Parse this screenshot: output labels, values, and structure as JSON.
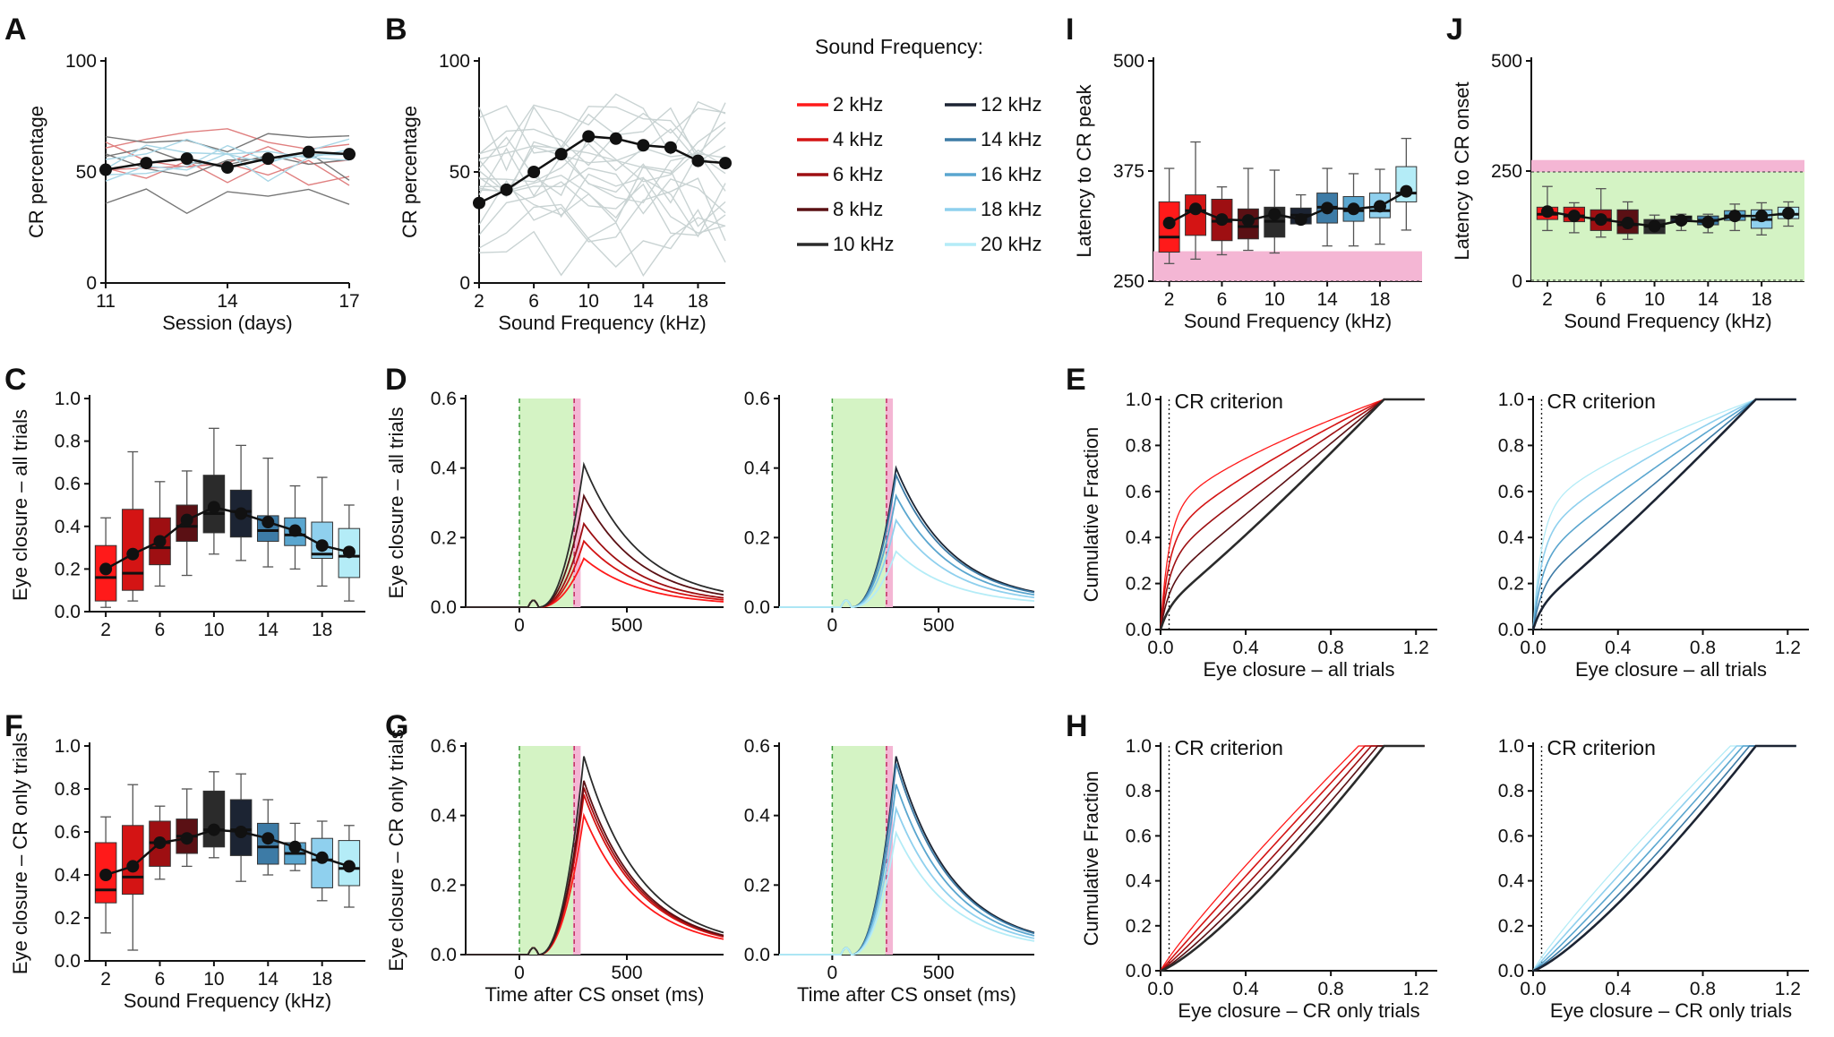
{
  "figure": {
    "legend": {
      "title": "Sound Frequency:",
      "items": [
        {
          "label": "2 kHz",
          "color": "#ff1a1a"
        },
        {
          "label": "4 kHz",
          "color": "#d41414"
        },
        {
          "label": "6 kHz",
          "color": "#9e0f12"
        },
        {
          "label": "8 kHz",
          "color": "#5a1014"
        },
        {
          "label": "10 kHz",
          "color": "#2b2b2b"
        },
        {
          "label": "12 kHz",
          "color": "#1c2433"
        },
        {
          "label": "14 kHz",
          "color": "#3d7ba6"
        },
        {
          "label": "16 kHz",
          "color": "#5aa6cf"
        },
        {
          "label": "18 kHz",
          "color": "#8fd0ee"
        },
        {
          "label": "20 kHz",
          "color": "#b4ecf7"
        }
      ]
    },
    "criterion_label": "CR criterion",
    "colors": {
      "green_window": "#d4f3c4",
      "pink_window": "#f4b6d4",
      "mean_line": "#111111",
      "gray_line": "#c9d3d3"
    }
  },
  "chart_data": [
    {
      "id": "A",
      "type": "line",
      "panel_label": "A",
      "xlabel": "Session (days)",
      "ylabel": "CR percentage",
      "x": [
        11,
        12,
        13,
        14,
        15,
        16,
        17
      ],
      "xticks": [
        11,
        14,
        17
      ],
      "ylim": [
        0,
        100
      ],
      "yticks": [
        0,
        50,
        100
      ],
      "series": [
        {
          "name": "mean",
          "values": [
            51,
            54,
            56,
            52,
            56,
            59,
            58
          ]
        }
      ]
    },
    {
      "id": "B",
      "type": "line",
      "panel_label": "B",
      "xlabel": "Sound Frequency (kHz)",
      "ylabel": "CR percentage",
      "x": [
        2,
        4,
        6,
        8,
        10,
        12,
        14,
        16,
        18,
        20
      ],
      "xticks": [
        2,
        6,
        10,
        14,
        18
      ],
      "ylim": [
        0,
        100
      ],
      "yticks": [
        0,
        50,
        100
      ],
      "series": [
        {
          "name": "mean",
          "values": [
            36,
            42,
            50,
            58,
            66,
            65,
            62,
            61,
            55,
            54
          ]
        }
      ]
    },
    {
      "id": "C",
      "type": "box",
      "panel_label": "C",
      "xlabel": "",
      "ylabel": "Eye closure – all trials",
      "categories": [
        2,
        4,
        6,
        8,
        10,
        12,
        14,
        16,
        18,
        20
      ],
      "xticks": [
        2,
        6,
        10,
        14,
        18
      ],
      "ylim": [
        0,
        1
      ],
      "yticks": [
        0.0,
        0.2,
        0.4,
        0.6,
        0.8,
        1.0
      ],
      "boxes": [
        [
          0.02,
          0.05,
          0.16,
          0.31,
          0.44
        ],
        [
          0.05,
          0.1,
          0.18,
          0.48,
          0.75
        ],
        [
          0.12,
          0.22,
          0.3,
          0.44,
          0.61
        ],
        [
          0.17,
          0.33,
          0.4,
          0.5,
          0.66
        ],
        [
          0.27,
          0.37,
          0.46,
          0.64,
          0.86
        ],
        [
          0.24,
          0.35,
          0.47,
          0.57,
          0.78
        ],
        [
          0.21,
          0.33,
          0.38,
          0.45,
          0.72
        ],
        [
          0.2,
          0.31,
          0.36,
          0.44,
          0.59
        ],
        [
          0.12,
          0.25,
          0.27,
          0.42,
          0.63
        ],
        [
          0.05,
          0.16,
          0.26,
          0.39,
          0.5
        ]
      ],
      "mean": [
        0.2,
        0.27,
        0.33,
        0.43,
        0.49,
        0.46,
        0.42,
        0.38,
        0.31,
        0.28
      ]
    },
    {
      "id": "F",
      "type": "box",
      "panel_label": "F",
      "xlabel": "Sound Frequency (kHz)",
      "ylabel": "Eye closure – CR only trials",
      "categories": [
        2,
        4,
        6,
        8,
        10,
        12,
        14,
        16,
        18,
        20
      ],
      "xticks": [
        2,
        6,
        10,
        14,
        18
      ],
      "ylim": [
        0,
        1
      ],
      "yticks": [
        0.0,
        0.2,
        0.4,
        0.6,
        0.8,
        1.0
      ],
      "boxes": [
        [
          0.13,
          0.27,
          0.33,
          0.55,
          0.67
        ],
        [
          0.05,
          0.31,
          0.39,
          0.63,
          0.82
        ],
        [
          0.38,
          0.44,
          0.55,
          0.65,
          0.72
        ],
        [
          0.44,
          0.5,
          0.58,
          0.66,
          0.8
        ],
        [
          0.48,
          0.53,
          0.61,
          0.79,
          0.88
        ],
        [
          0.37,
          0.49,
          0.61,
          0.75,
          0.87
        ],
        [
          0.4,
          0.45,
          0.53,
          0.64,
          0.75
        ],
        [
          0.42,
          0.45,
          0.5,
          0.55,
          0.64
        ],
        [
          0.28,
          0.34,
          0.47,
          0.57,
          0.65
        ],
        [
          0.25,
          0.35,
          0.43,
          0.56,
          0.63
        ]
      ],
      "mean": [
        0.4,
        0.44,
        0.55,
        0.57,
        0.61,
        0.6,
        0.57,
        0.53,
        0.48,
        0.44
      ]
    },
    {
      "id": "D",
      "type": "line",
      "panel_label": "D",
      "xlabel": "",
      "ylabel": "Eye closure – all trials",
      "xlim": [
        -250,
        950
      ],
      "xticks": [
        0,
        500
      ],
      "ylim": [
        0,
        0.6
      ],
      "yticks": [
        0.0,
        0.2,
        0.4,
        0.6
      ],
      "cs_window": [
        0,
        250
      ],
      "us_window": [
        250,
        285
      ],
      "series_left": [
        {
          "name": "2 kHz",
          "peak": 0.14
        },
        {
          "name": "4 kHz",
          "peak": 0.19
        },
        {
          "name": "6 kHz",
          "peak": 0.24
        },
        {
          "name": "8 kHz",
          "peak": 0.32
        },
        {
          "name": "10 kHz",
          "peak": 0.41
        }
      ],
      "series_right": [
        {
          "name": "12 kHz",
          "peak": 0.4
        },
        {
          "name": "14 kHz",
          "peak": 0.38
        },
        {
          "name": "16 kHz",
          "peak": 0.32
        },
        {
          "name": "18 kHz",
          "peak": 0.25
        },
        {
          "name": "20 kHz",
          "peak": 0.16
        }
      ]
    },
    {
      "id": "G",
      "type": "line",
      "panel_label": "G",
      "xlabel": "Time after CS onset (ms)",
      "ylabel": "Eye closure – CR only trials",
      "xlim": [
        -250,
        950
      ],
      "xticks": [
        0,
        500
      ],
      "ylim": [
        0,
        0.6
      ],
      "yticks": [
        0.0,
        0.2,
        0.4,
        0.6
      ],
      "cs_window": [
        0,
        250
      ],
      "us_window": [
        250,
        285
      ],
      "series_left": [
        {
          "name": "2 kHz",
          "peak": 0.4
        },
        {
          "name": "4 kHz",
          "peak": 0.46
        },
        {
          "name": "6 kHz",
          "peak": 0.48
        },
        {
          "name": "8 kHz",
          "peak": 0.5
        },
        {
          "name": "10 kHz",
          "peak": 0.57
        }
      ],
      "series_right": [
        {
          "name": "12 kHz",
          "peak": 0.57
        },
        {
          "name": "14 kHz",
          "peak": 0.55
        },
        {
          "name": "16 kHz",
          "peak": 0.49
        },
        {
          "name": "18 kHz",
          "peak": 0.42
        },
        {
          "name": "20 kHz",
          "peak": 0.35
        }
      ]
    },
    {
      "id": "I",
      "type": "box",
      "panel_label": "I",
      "xlabel": "Sound Frequency (kHz)",
      "ylabel": "Latency to CR peak",
      "categories": [
        2,
        4,
        6,
        8,
        10,
        12,
        14,
        16,
        18,
        20
      ],
      "xticks": [
        2,
        6,
        10,
        14,
        18
      ],
      "ylim": [
        250,
        500
      ],
      "yticks": [
        250,
        375,
        500
      ],
      "pink_band": [
        250,
        284
      ],
      "boxes": [
        [
          270,
          283,
          300,
          340,
          378
        ],
        [
          275,
          302,
          330,
          348,
          408
        ],
        [
          280,
          296,
          318,
          343,
          357
        ],
        [
          285,
          298,
          312,
          332,
          378
        ],
        [
          282,
          300,
          318,
          334,
          376
        ],
        [
          315,
          315,
          325,
          333,
          348
        ],
        [
          290,
          316,
          334,
          350,
          378
        ],
        [
          290,
          318,
          330,
          346,
          372
        ],
        [
          292,
          322,
          330,
          350,
          377
        ],
        [
          308,
          340,
          350,
          380,
          412
        ]
      ],
      "mean": [
        316,
        332,
        320,
        319,
        326,
        320,
        333,
        332,
        335,
        352
      ]
    },
    {
      "id": "J",
      "type": "box",
      "panel_label": "J",
      "xlabel": "Sound Frequency (kHz)",
      "ylabel": "Latency to CR onset",
      "categories": [
        2,
        4,
        6,
        8,
        10,
        12,
        14,
        16,
        18,
        20
      ],
      "xticks": [
        2,
        6,
        10,
        14,
        18
      ],
      "ylim": [
        0,
        500
      ],
      "yticks": [
        0,
        250,
        500
      ],
      "pink_band": [
        248,
        275
      ],
      "green_band": [
        0,
        248
      ],
      "boxes": [
        [
          115,
          140,
          152,
          168,
          215
        ],
        [
          110,
          135,
          148,
          168,
          178
        ],
        [
          100,
          115,
          140,
          162,
          210
        ],
        [
          95,
          108,
          128,
          162,
          180
        ],
        [
          110,
          108,
          125,
          140,
          150
        ],
        [
          115,
          135,
          145,
          148,
          152
        ],
        [
          110,
          128,
          138,
          148,
          152
        ],
        [
          115,
          138,
          148,
          160,
          175
        ],
        [
          105,
          120,
          140,
          162,
          178
        ],
        [
          125,
          142,
          152,
          168,
          180
        ]
      ],
      "mean": [
        158,
        148,
        140,
        132,
        125,
        138,
        134,
        148,
        148,
        154
      ]
    },
    {
      "id": "E",
      "type": "line",
      "panel_label": "E",
      "xlabel": "Eye closure – all trials",
      "ylabel": "Cumulative Fraction",
      "xlim": [
        0,
        1.3
      ],
      "xticks": [
        0.0,
        0.4,
        0.8,
        1.2
      ],
      "ylim": [
        0,
        1
      ],
      "yticks": [
        0.0,
        0.2,
        0.4,
        0.6,
        0.8,
        1.0
      ],
      "criterion": 0.04
    },
    {
      "id": "E2",
      "type": "line",
      "panel_label": "",
      "xlabel": "Eye closure – all trials",
      "ylabel": "",
      "xlim": [
        0,
        1.3
      ],
      "xticks": [
        0.0,
        0.4,
        0.8,
        1.2
      ],
      "ylim": [
        0,
        1
      ],
      "yticks": [
        0.0,
        0.2,
        0.4,
        0.6,
        0.8,
        1.0
      ],
      "criterion": 0.04
    },
    {
      "id": "H",
      "type": "line",
      "panel_label": "H",
      "xlabel": "Eye closure – CR only trials",
      "ylabel": "Cumulative Fraction",
      "xlim": [
        0,
        1.3
      ],
      "xticks": [
        0.0,
        0.4,
        0.8,
        1.2
      ],
      "ylim": [
        0,
        1
      ],
      "yticks": [
        0.0,
        0.2,
        0.4,
        0.6,
        0.8,
        1.0
      ],
      "criterion": 0.04
    },
    {
      "id": "H2",
      "type": "line",
      "panel_label": "",
      "xlabel": "Eye closure – CR only trials",
      "ylabel": "",
      "xlim": [
        0,
        1.3
      ],
      "xticks": [
        0.0,
        0.4,
        0.8,
        1.2
      ],
      "ylim": [
        0,
        1
      ],
      "yticks": [
        0.0,
        0.2,
        0.4,
        0.6,
        0.8,
        1.0
      ],
      "criterion": 0.04
    }
  ]
}
